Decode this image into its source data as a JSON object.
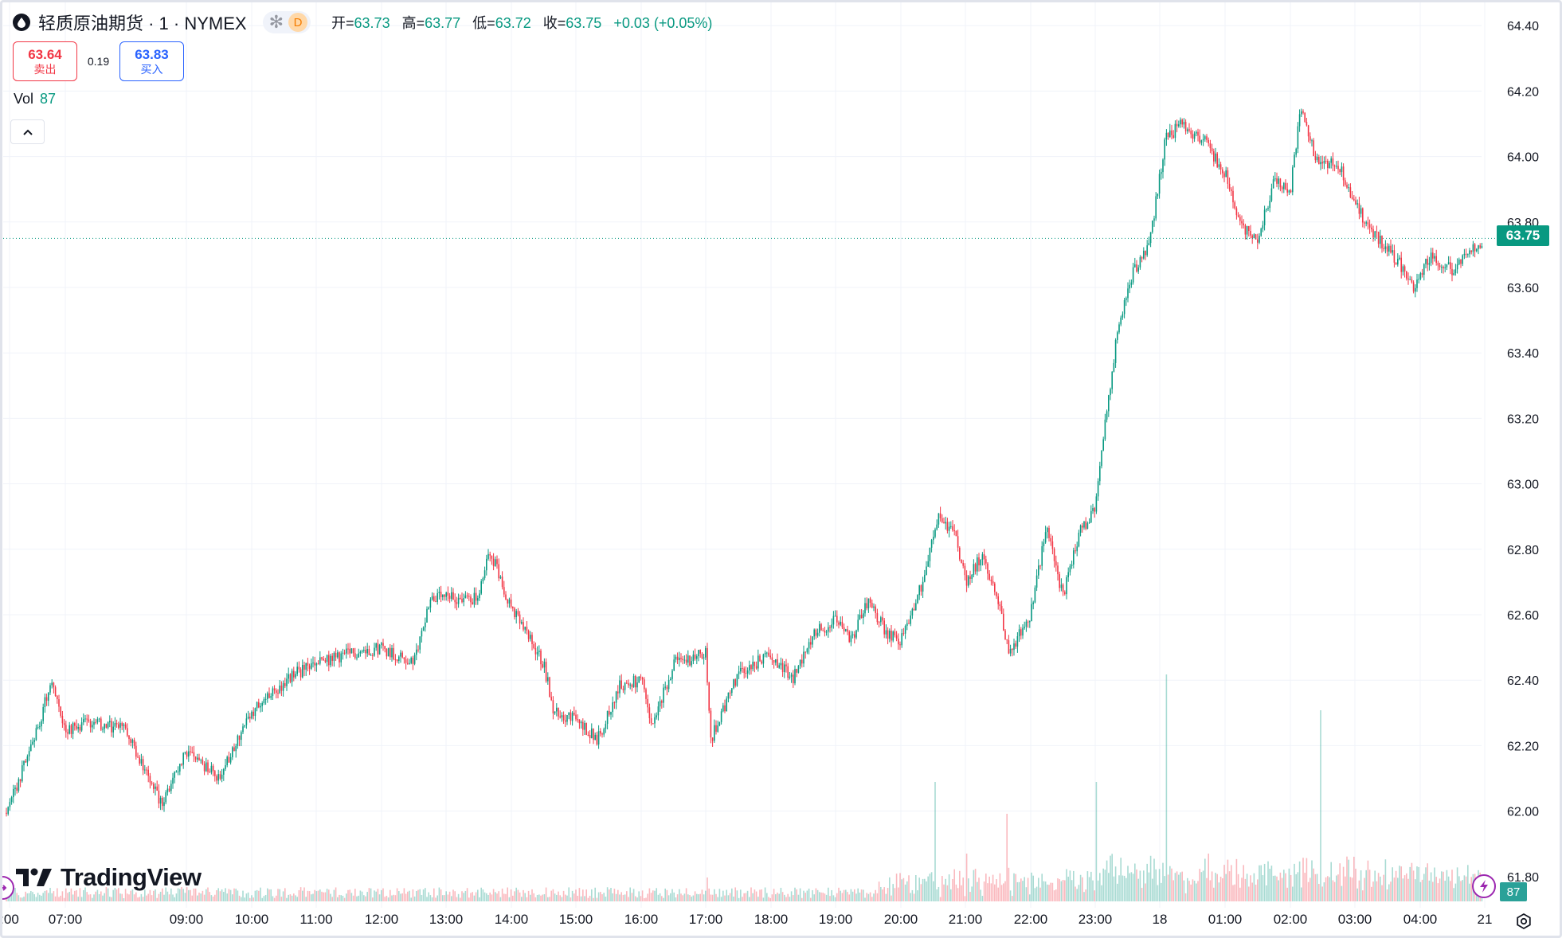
{
  "header": {
    "symbol_title": "轻质原油期货 · 1 · NYMEX",
    "status_badge": "D",
    "ohlc": {
      "open_key": "开=",
      "open": "63.73",
      "high_key": "高=",
      "high": "63.77",
      "low_key": "低=",
      "low": "63.72",
      "close_key": "收=",
      "close": "63.75",
      "change": "+0.03 (+0.05%)"
    }
  },
  "trade": {
    "sell_price": "63.64",
    "sell_label": "卖出",
    "spread": "0.19",
    "buy_price": "63.83",
    "buy_label": "买入"
  },
  "volume": {
    "label": "Vol",
    "value": "87"
  },
  "branding": {
    "logo_text": "TradingView"
  },
  "price_axis": {
    "current_price_tag": "63.75",
    "volume_tag": "87",
    "partial_bottom_label": "61.80"
  },
  "colors": {
    "up": "#089981",
    "down": "#f23645",
    "grid": "#f0f3fa",
    "accent_purple": "#9c27b0"
  },
  "icons": [
    "oil-drop-icon",
    "snowflake-icon",
    "chevron-up-icon",
    "tradingview-logo-icon",
    "replay-icon",
    "lightning-icon",
    "settings-icon"
  ],
  "chart_data": {
    "type": "candlestick",
    "title": "轻质原油期货 · 1 · NYMEX",
    "interval": "1 minute",
    "ylim": [
      61.78,
      64.42
    ],
    "y_ticks": [
      62.0,
      62.2,
      62.4,
      62.6,
      62.8,
      63.0,
      63.2,
      63.4,
      63.6,
      63.8,
      64.0,
      64.2,
      64.4
    ],
    "current_price": 63.75,
    "grid": true,
    "x_ticks": [
      ":00",
      "07:00",
      "09:00",
      "10:00",
      "11:00",
      "12:00",
      "13:00",
      "14:00",
      "15:00",
      "16:00",
      "17:00",
      "18:00",
      "19:00",
      "20:00",
      "21:00",
      "22:00",
      "23:00",
      "18",
      "01:00",
      "02:00",
      "03:00",
      "04:00",
      "21"
    ],
    "price_path_samples": [
      {
        "time": "05:55",
        "close": 61.98
      },
      {
        "time": "06:30",
        "close": 62.25
      },
      {
        "time": "06:45",
        "close": 62.4
      },
      {
        "time": "07:00",
        "close": 62.25
      },
      {
        "time": "07:30",
        "close": 62.27
      },
      {
        "time": "08:00",
        "close": 62.25
      },
      {
        "time": "08:20",
        "close": 62.12
      },
      {
        "time": "08:35",
        "close": 62.02
      },
      {
        "time": "09:00",
        "close": 62.18
      },
      {
        "time": "09:30",
        "close": 62.1
      },
      {
        "time": "10:00",
        "close": 62.3
      },
      {
        "time": "10:40",
        "close": 62.42
      },
      {
        "time": "11:00",
        "close": 62.45
      },
      {
        "time": "11:30",
        "close": 62.48
      },
      {
        "time": "12:00",
        "close": 62.5
      },
      {
        "time": "12:30",
        "close": 62.45
      },
      {
        "time": "12:45",
        "close": 62.65
      },
      {
        "time": "13:30",
        "close": 62.65
      },
      {
        "time": "13:40",
        "close": 62.8
      },
      {
        "time": "14:00",
        "close": 62.62
      },
      {
        "time": "14:30",
        "close": 62.45
      },
      {
        "time": "14:40",
        "close": 62.3
      },
      {
        "time": "15:00",
        "close": 62.28
      },
      {
        "time": "15:20",
        "close": 62.22
      },
      {
        "time": "15:40",
        "close": 62.38
      },
      {
        "time": "16:00",
        "close": 62.4
      },
      {
        "time": "16:10",
        "close": 62.25
      },
      {
        "time": "16:30",
        "close": 62.45
      },
      {
        "time": "17:00",
        "close": 62.48
      },
      {
        "time": "17:05",
        "close": 62.22
      },
      {
        "time": "17:30",
        "close": 62.42
      },
      {
        "time": "18:00",
        "close": 62.48
      },
      {
        "time": "18:20",
        "close": 62.4
      },
      {
        "time": "18:40",
        "close": 62.55
      },
      {
        "time": "19:00",
        "close": 62.58
      },
      {
        "time": "19:15",
        "close": 62.52
      },
      {
        "time": "19:30",
        "close": 62.65
      },
      {
        "time": "19:45",
        "close": 62.55
      },
      {
        "time": "20:00",
        "close": 62.52
      },
      {
        "time": "20:20",
        "close": 62.7
      },
      {
        "time": "20:35",
        "close": 62.9
      },
      {
        "time": "20:50",
        "close": 62.85
      },
      {
        "time": "21:00",
        "close": 62.7
      },
      {
        "time": "21:15",
        "close": 62.78
      },
      {
        "time": "21:30",
        "close": 62.65
      },
      {
        "time": "21:40",
        "close": 62.48
      },
      {
        "time": "22:00",
        "close": 62.6
      },
      {
        "time": "22:15",
        "close": 62.88
      },
      {
        "time": "22:30",
        "close": 62.65
      },
      {
        "time": "22:45",
        "close": 62.85
      },
      {
        "time": "23:00",
        "close": 62.92
      },
      {
        "time": "23:10",
        "close": 63.2
      },
      {
        "time": "23:20",
        "close": 63.45
      },
      {
        "time": "23:35",
        "close": 63.65
      },
      {
        "time": "23:50",
        "close": 63.72
      },
      {
        "time": "00:05",
        "close": 64.05
      },
      {
        "time": "00:20",
        "close": 64.1
      },
      {
        "time": "00:40",
        "close": 64.05
      },
      {
        "time": "01:00",
        "close": 63.95
      },
      {
        "time": "01:15",
        "close": 63.78
      },
      {
        "time": "01:30",
        "close": 63.75
      },
      {
        "time": "01:45",
        "close": 63.92
      },
      {
        "time": "02:00",
        "close": 63.9
      },
      {
        "time": "02:10",
        "close": 64.15
      },
      {
        "time": "02:25",
        "close": 63.98
      },
      {
        "time": "02:45",
        "close": 63.98
      },
      {
        "time": "03:00",
        "close": 63.85
      },
      {
        "time": "03:20",
        "close": 63.75
      },
      {
        "time": "03:40",
        "close": 63.68
      },
      {
        "time": "03:55",
        "close": 63.6
      },
      {
        "time": "04:10",
        "close": 63.7
      },
      {
        "time": "04:30",
        "close": 63.65
      },
      {
        "time": "04:50",
        "close": 63.72
      },
      {
        "time": "05:00",
        "close": 63.75
      }
    ]
  }
}
